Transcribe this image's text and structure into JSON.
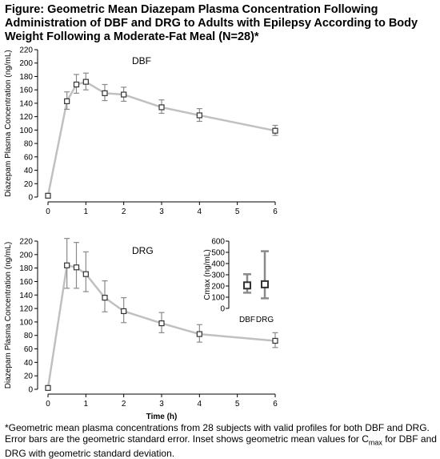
{
  "figure": {
    "title": "Figure: Geometric Mean Diazepam Plasma Concentration Following Administration of DBF and DRG to Adults with Epilepsy According to Body Weight Following a Moderate-Fat Meal (N=28)*",
    "footnote_main": "*Geometric mean plasma concentrations from 28 subjects with valid profiles for both DBF and DRG. Error bars are the geometric standard error. Inset shows geometric mean values for C",
    "footnote_sub": "max",
    "footnote_tail": " for DBF and DRG with geometric standard deviation."
  },
  "chart_data": [
    {
      "type": "line",
      "panel_label": "DBF",
      "ylabel": "Diazepam Plasma Concentration (ng/mL)",
      "xlabel": "",
      "xlim": [
        0,
        6
      ],
      "ylim": [
        0,
        220
      ],
      "x_ticks": [
        0,
        1,
        2,
        3,
        4,
        5,
        6
      ],
      "y_ticks": [
        0,
        20,
        40,
        60,
        80,
        100,
        120,
        140,
        160,
        180,
        200,
        220
      ],
      "points": [
        {
          "x": 0,
          "y": 2,
          "err_low": 2,
          "err_high": 2
        },
        {
          "x": 0.5,
          "y": 143,
          "err_low": 131,
          "err_high": 157
        },
        {
          "x": 0.75,
          "y": 168,
          "err_low": 155,
          "err_high": 183
        },
        {
          "x": 1,
          "y": 172,
          "err_low": 160,
          "err_high": 185
        },
        {
          "x": 1.5,
          "y": 155,
          "err_low": 144,
          "err_high": 168
        },
        {
          "x": 2,
          "y": 153,
          "err_low": 143,
          "err_high": 164
        },
        {
          "x": 3,
          "y": 134,
          "err_low": 125,
          "err_high": 145
        },
        {
          "x": 4,
          "y": 122,
          "err_low": 113,
          "err_high": 132
        },
        {
          "x": 6,
          "y": 99,
          "err_low": 92,
          "err_high": 107
        }
      ]
    },
    {
      "type": "line",
      "panel_label": "DRG",
      "ylabel": "Diazepam Plasma Concentration (ng/mL)",
      "xlabel": "Time (h)",
      "xlim": [
        0,
        6
      ],
      "ylim": [
        0,
        220
      ],
      "x_ticks": [
        0,
        1,
        2,
        3,
        4,
        5,
        6
      ],
      "y_ticks": [
        0,
        20,
        40,
        60,
        80,
        100,
        120,
        140,
        160,
        180,
        200,
        220
      ],
      "points": [
        {
          "x": 0,
          "y": 2,
          "err_low": 2,
          "err_high": 2
        },
        {
          "x": 0.5,
          "y": 184,
          "err_low": 150,
          "err_high": 224
        },
        {
          "x": 0.75,
          "y": 181,
          "err_low": 150,
          "err_high": 218
        },
        {
          "x": 1,
          "y": 171,
          "err_low": 145,
          "err_high": 204
        },
        {
          "x": 1.5,
          "y": 136,
          "err_low": 115,
          "err_high": 161
        },
        {
          "x": 2,
          "y": 116,
          "err_low": 99,
          "err_high": 136
        },
        {
          "x": 3,
          "y": 98,
          "err_low": 84,
          "err_high": 114
        },
        {
          "x": 4,
          "y": 82,
          "err_low": 70,
          "err_high": 96
        },
        {
          "x": 6,
          "y": 72,
          "err_low": 62,
          "err_high": 84
        }
      ]
    },
    {
      "type": "scatter",
      "ylabel": "Cmax (ng/mL)",
      "ylim": [
        0,
        600
      ],
      "y_ticks": [
        0,
        100,
        200,
        300,
        400,
        500,
        600
      ],
      "categories": [
        "DBF",
        "DRG"
      ],
      "values": [
        205,
        215
      ],
      "err_low": [
        140,
        90
      ],
      "err_high": [
        305,
        510
      ]
    }
  ],
  "colors": {
    "line": "#c0c0c0",
    "errorbar": "#8a8a8a",
    "marker_edge": "#333333",
    "axis": "#000000"
  }
}
